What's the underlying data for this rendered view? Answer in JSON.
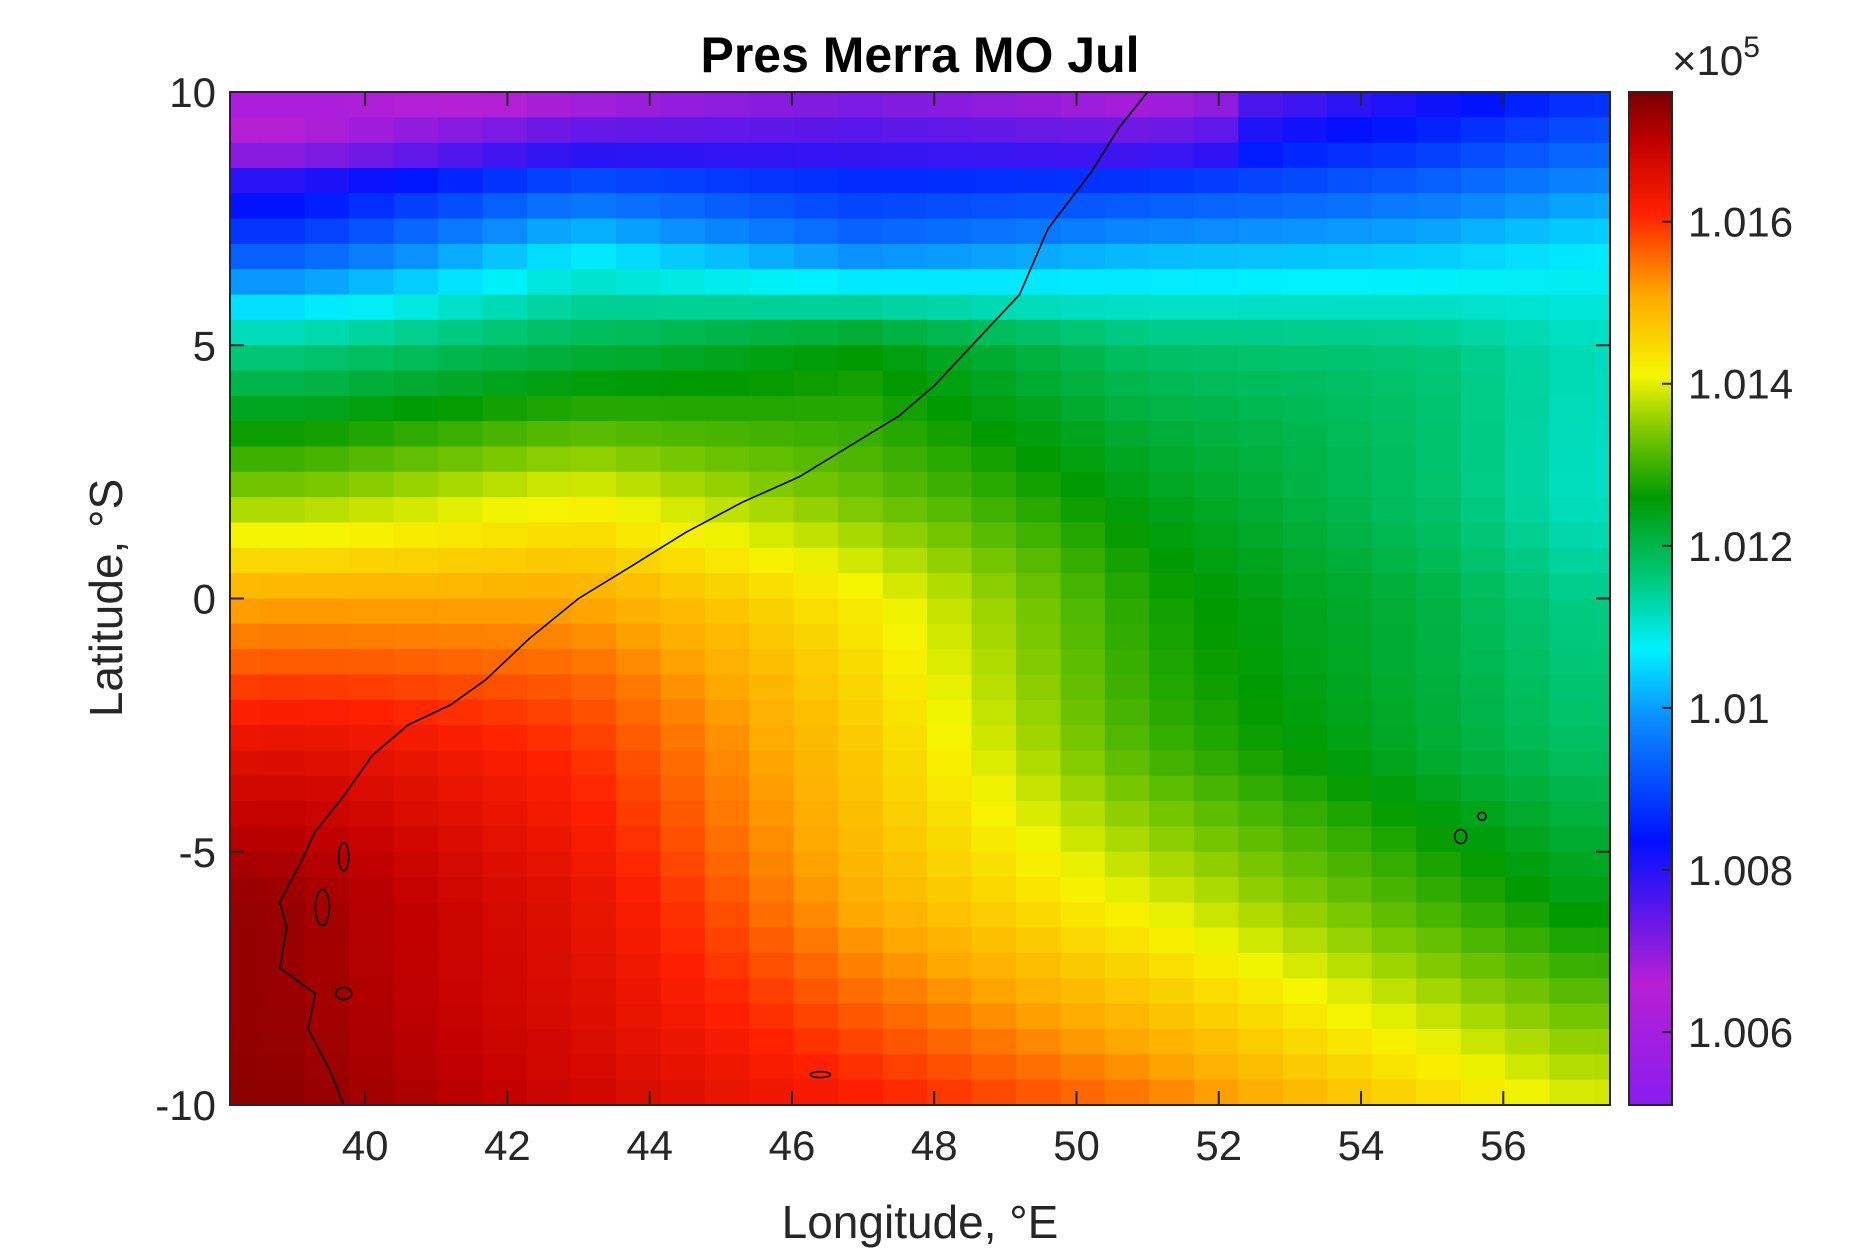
{
  "chart_data": {
    "type": "heatmap",
    "title": "Pres Merra MO Jul",
    "xlabel": "Longitude, °E",
    "ylabel": "Latitude, °S",
    "xlim": [
      38.1,
      57.5
    ],
    "ylim": [
      -10,
      10
    ],
    "x_ticks": [
      "40",
      "42",
      "44",
      "46",
      "48",
      "50",
      "52",
      "54",
      "56"
    ],
    "y_ticks": [
      "10",
      "5",
      "0",
      "-5",
      "-10"
    ],
    "colorbar": {
      "multiplier_base": "×10",
      "multiplier_exp": "5",
      "tick_labels": [
        "1.016",
        "1.014",
        "1.012",
        "1.01",
        "1.008",
        "1.006"
      ],
      "range": [
        1.0051,
        1.0176
      ],
      "colormap": "jet-like (purple → blue → cyan → green → yellow → red → dark red)"
    },
    "grid_cell_deg": [
      0.625,
      0.5
    ],
    "approx_field_samples": {
      "note_lat": [
        10,
        7,
        5,
        2,
        0,
        -3,
        -6,
        -10
      ],
      "note_lon": [
        39,
        43,
        47,
        51,
        55,
        57
      ],
      "values_x1e5_Pa": [
        [
          1.0065,
          1.007,
          1.0075,
          1.007,
          1.008,
          1.0085
        ],
        [
          1.009,
          1.0105,
          1.0095,
          1.01,
          1.01,
          1.0102
        ],
        [
          1.0115,
          1.012,
          1.0125,
          1.0115,
          1.0112,
          1.0108
        ],
        [
          1.0135,
          1.014,
          1.013,
          1.012,
          1.0115,
          1.011
        ],
        [
          1.015,
          1.0148,
          1.0138,
          1.0125,
          1.012,
          1.0115
        ],
        [
          1.0162,
          1.0156,
          1.0145,
          1.013,
          1.0122,
          1.0118
        ],
        [
          1.017,
          1.0164,
          1.015,
          1.014,
          1.013,
          1.0125
        ],
        [
          1.0174,
          1.0168,
          1.0162,
          1.0155,
          1.0145,
          1.014
        ]
      ]
    },
    "coastline": "East African coast from (38.6,-10) north-east to (51,10)"
  }
}
